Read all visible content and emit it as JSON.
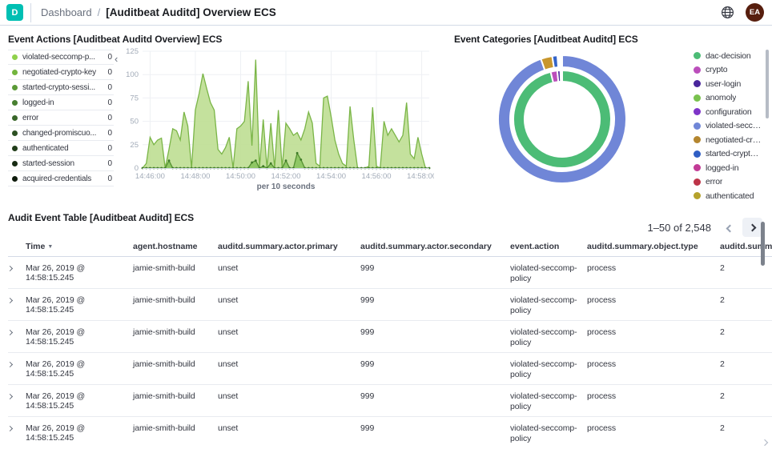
{
  "header": {
    "logo_letter": "D",
    "breadcrumb_root": "Dashboard",
    "breadcrumb_separator": "/",
    "page_title": "[Auditbeat Auditd] Overview ECS",
    "avatar_initials": "EA",
    "icons": [
      "globe-icon",
      "user-avatar"
    ]
  },
  "event_actions_panel": {
    "title": "Event Actions [Auditbeat Auditd Overview] ECS",
    "legend_collapse_icon": "chevron-left-icon",
    "legend": [
      {
        "label": "violated-seccomp-p...",
        "value": "0",
        "color": "#8fd14c"
      },
      {
        "label": "negotiated-crypto-key",
        "value": "0",
        "color": "#73b53e"
      },
      {
        "label": "started-crypto-sessi...",
        "value": "0",
        "color": "#5b9a37"
      },
      {
        "label": "logged-in",
        "value": "0",
        "color": "#477f30"
      },
      {
        "label": "error",
        "value": "0",
        "color": "#386629"
      },
      {
        "label": "changed-promiscuo...",
        "value": "0",
        "color": "#2c5022"
      },
      {
        "label": "authenticated",
        "value": "0",
        "color": "#213d1a"
      },
      {
        "label": "started-session",
        "value": "0",
        "color": "#172b13"
      },
      {
        "label": "acquired-credentials",
        "value": "0",
        "color": "#0e1b0c"
      }
    ],
    "chart_data": {
      "type": "area",
      "x_start": "14:45:40",
      "x_interval_seconds": 10,
      "x_tick_labels": [
        "14:46:00",
        "14:48:00",
        "14:50:00",
        "14:52:00",
        "14:54:00",
        "14:56:00",
        "14:58:00"
      ],
      "x_tick_indices": [
        2,
        14,
        26,
        38,
        50,
        62,
        74
      ],
      "xlabel": "per 10 seconds",
      "ylim": [
        0,
        125
      ],
      "yticks": [
        0,
        25,
        50,
        75,
        100,
        125
      ],
      "grid": true,
      "series": [
        {
          "name": "violated-seccomp-policy",
          "fill": "#bede92",
          "stroke": "#7ab547",
          "values": [
            0,
            5,
            33,
            25,
            30,
            32,
            0,
            20,
            42,
            40,
            30,
            60,
            45,
            0,
            62,
            80,
            101,
            85,
            70,
            62,
            20,
            15,
            22,
            33,
            0,
            42,
            45,
            50,
            93,
            24,
            116,
            0,
            52,
            0,
            48,
            0,
            62,
            0,
            48,
            42,
            35,
            38,
            30,
            42,
            60,
            48,
            5,
            2,
            75,
            77,
            55,
            30,
            15,
            5,
            2,
            66,
            30,
            0,
            0,
            0,
            2,
            65,
            2,
            0,
            50,
            35,
            42,
            35,
            28,
            35,
            70,
            15,
            10,
            33,
            15,
            0,
            0
          ]
        },
        {
          "name": "started-crypto-session",
          "fill": "#8ac45f",
          "stroke": "#549132",
          "marker": "#3e7a28",
          "values": [
            0,
            0,
            0,
            0,
            0,
            0,
            0,
            8,
            0,
            0,
            0,
            0,
            0,
            0,
            0,
            0,
            0,
            0,
            0,
            0,
            0,
            0,
            0,
            0,
            0,
            0,
            0,
            0,
            0,
            6,
            8,
            0,
            2,
            0,
            5,
            0,
            0,
            0,
            8,
            0,
            0,
            16,
            9,
            0,
            0,
            0,
            0,
            0,
            0,
            0,
            0,
            0,
            0,
            0,
            0,
            0,
            0,
            0,
            0,
            0,
            0,
            0,
            0,
            0,
            0,
            0,
            0,
            0,
            0,
            0,
            0,
            0,
            0,
            0,
            0,
            0,
            0
          ]
        }
      ]
    }
  },
  "event_categories_panel": {
    "title": "Event Categories [Auditbeat Auditd] ECS",
    "legend": [
      {
        "label": "dac-decision",
        "color": "#4cbc76"
      },
      {
        "label": "crypto",
        "color": "#bb4ebb"
      },
      {
        "label": "user-login",
        "color": "#49269c"
      },
      {
        "label": "anomoly",
        "color": "#79c24e"
      },
      {
        "label": "configuration",
        "color": "#7e35c8"
      },
      {
        "label": "violated-seccomp...",
        "color": "#7086d7"
      },
      {
        "label": "negotiated-crypto...",
        "color": "#b4862f"
      },
      {
        "label": "started-crypto-se...",
        "color": "#2f5ec4"
      },
      {
        "label": "logged-in",
        "color": "#c23b96"
      },
      {
        "label": "error",
        "color": "#bd3448"
      },
      {
        "label": "authenticated",
        "color": "#b5a22c"
      }
    ],
    "chart_data": {
      "type": "pie",
      "subtype": "two-ring-donut",
      "inner_ring": [
        {
          "label": "dac-decision",
          "pct": 96.2,
          "color": "#4cbc76"
        },
        {
          "label": "crypto",
          "pct": 2.2,
          "color": "#bb4ebb"
        },
        {
          "label": "user-login",
          "pct": 1.0,
          "color": "#49269c"
        }
      ],
      "outer_ring": [
        {
          "label": "violated-seccomp-policy",
          "pct": 94.6,
          "color": "#7086d7"
        },
        {
          "label": "negotiated-crypto-key",
          "pct": 2.9,
          "color": "#c8962d"
        },
        {
          "label": "started-crypto-session",
          "pct": 1.3,
          "color": "#3464c9"
        }
      ],
      "legend_position": "right"
    }
  },
  "table_panel": {
    "title": "Audit Event Table [Auditbeat Auditd] ECS",
    "pagination": {
      "range_label": "1–50 of 2,548",
      "prev_icon": "chevron-left-icon",
      "next_icon": "chevron-right-icon"
    },
    "columns": [
      {
        "key": "expander",
        "label": ""
      },
      {
        "key": "time",
        "label": "Time",
        "sorted": "desc",
        "sort_icon": "caret-down-icon"
      },
      {
        "key": "hostname",
        "label": "agent.hostname"
      },
      {
        "key": "actor_primary",
        "label": "auditd.summary.actor.primary"
      },
      {
        "key": "actor_secondary",
        "label": "auditd.summary.actor.secondary"
      },
      {
        "key": "action",
        "label": "event.action"
      },
      {
        "key": "object_type",
        "label": "auditd.summary.object.type"
      },
      {
        "key": "summary",
        "label": "auditd.summary"
      }
    ],
    "rows": [
      {
        "time": "Mar 26, 2019 @ 14:58:15.245",
        "hostname": "jamie-smith-build",
        "actor_primary": "unset",
        "actor_secondary": "999",
        "action": "violated-seccomp-policy",
        "object_type": "process",
        "summary": "2"
      },
      {
        "time": "Mar 26, 2019 @ 14:58:15.245",
        "hostname": "jamie-smith-build",
        "actor_primary": "unset",
        "actor_secondary": "999",
        "action": "violated-seccomp-policy",
        "object_type": "process",
        "summary": "2"
      },
      {
        "time": "Mar 26, 2019 @ 14:58:15.245",
        "hostname": "jamie-smith-build",
        "actor_primary": "unset",
        "actor_secondary": "999",
        "action": "violated-seccomp-policy",
        "object_type": "process",
        "summary": "2"
      },
      {
        "time": "Mar 26, 2019 @ 14:58:15.245",
        "hostname": "jamie-smith-build",
        "actor_primary": "unset",
        "actor_secondary": "999",
        "action": "violated-seccomp-policy",
        "object_type": "process",
        "summary": "2"
      },
      {
        "time": "Mar 26, 2019 @ 14:58:15.245",
        "hostname": "jamie-smith-build",
        "actor_primary": "unset",
        "actor_secondary": "999",
        "action": "violated-seccomp-policy",
        "object_type": "process",
        "summary": "2"
      },
      {
        "time": "Mar 26, 2019 @ 14:58:15.245",
        "hostname": "jamie-smith-build",
        "actor_primary": "unset",
        "actor_secondary": "999",
        "action": "violated-seccomp-policy",
        "object_type": "process",
        "summary": "2"
      }
    ]
  },
  "colors": {
    "nav_border": "#d3dae6",
    "logo_teal": "#00bfb3",
    "avatar_bg": "#571e0e",
    "grid_line": "#eef0f4",
    "axis_label": "#a2abb8",
    "row_border": "#e8ebf0"
  }
}
